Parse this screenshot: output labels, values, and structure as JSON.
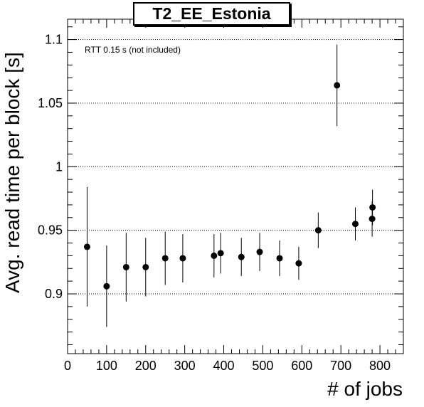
{
  "chart_data": {
    "type": "scatter",
    "title": "T2_EE_Estonia",
    "xlabel": "# of jobs",
    "ylabel": "Avg. read time per block [s]",
    "annotation": "RTT 0.15 s (not included)",
    "xlim": [
      0,
      860
    ],
    "ylim": [
      0.853,
      1.116
    ],
    "x_ticks": [
      0,
      100,
      200,
      300,
      400,
      500,
      600,
      700,
      800
    ],
    "x_tick_labels": [
      "0",
      "100",
      "200",
      "300",
      "400",
      "500",
      "600",
      "700",
      "800"
    ],
    "y_ticks": [
      0.9,
      0.95,
      1.0,
      1.05,
      1.1
    ],
    "y_tick_labels": [
      "0.9",
      "0.95",
      "1",
      "1.05",
      "1.1"
    ],
    "y_gridlines": true,
    "series": [
      {
        "points": [
          {
            "x": 50,
            "y": 0.937,
            "err": 0.047
          },
          {
            "x": 100,
            "y": 0.906,
            "err": 0.032
          },
          {
            "x": 150,
            "y": 0.921,
            "err": 0.027
          },
          {
            "x": 200,
            "y": 0.921,
            "err": 0.023
          },
          {
            "x": 250,
            "y": 0.928,
            "err": 0.021
          },
          {
            "x": 295,
            "y": 0.928,
            "err": 0.019
          },
          {
            "x": 375,
            "y": 0.93,
            "err": 0.017
          },
          {
            "x": 392,
            "y": 0.932,
            "err": 0.016
          },
          {
            "x": 445,
            "y": 0.929,
            "err": 0.015
          },
          {
            "x": 492,
            "y": 0.933,
            "err": 0.015
          },
          {
            "x": 543,
            "y": 0.928,
            "err": 0.014
          },
          {
            "x": 592,
            "y": 0.924,
            "err": 0.013
          },
          {
            "x": 642,
            "y": 0.95,
            "err": 0.014
          },
          {
            "x": 690,
            "y": 1.064,
            "err": 0.032
          },
          {
            "x": 737,
            "y": 0.955,
            "err": 0.013
          },
          {
            "x": 780,
            "y": 0.959,
            "err": 0.014
          },
          {
            "x": 781,
            "y": 0.968,
            "err": 0.014
          }
        ]
      }
    ]
  }
}
